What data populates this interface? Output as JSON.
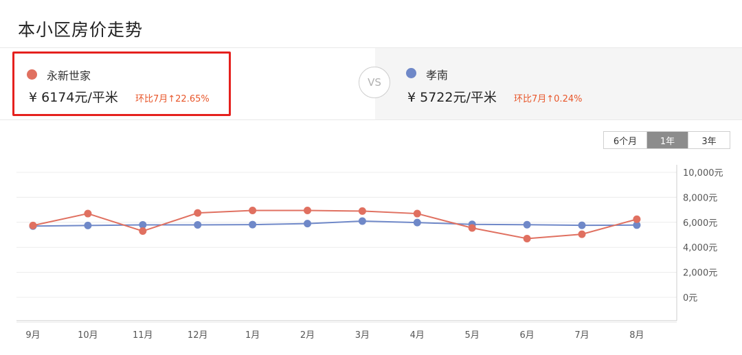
{
  "page": {
    "title": "本小区房价走势"
  },
  "compare": {
    "left": {
      "name": "永新世家",
      "price": "¥ 6174元/平米",
      "change": "环比7月↑22.65%",
      "color": "#e07060"
    },
    "vs": "VS",
    "right": {
      "name": "孝南",
      "price": "¥ 5722元/平米",
      "change": "环比7月↑0.24%",
      "color": "#6f88c8"
    }
  },
  "range_tabs": [
    {
      "label": "6个月",
      "active": false
    },
    {
      "label": "1年",
      "active": true
    },
    {
      "label": "3年",
      "active": false
    }
  ],
  "chart_data": {
    "type": "line",
    "categories": [
      "9月",
      "10月",
      "11月",
      "12月",
      "1月",
      "2月",
      "3月",
      "4月",
      "5月",
      "6月",
      "7月",
      "8月"
    ],
    "series": [
      {
        "name": "永新世家",
        "color": "#e07060",
        "values": [
          5750,
          6700,
          5300,
          6750,
          6950,
          6950,
          6900,
          6700,
          5550,
          4700,
          5050,
          6250
        ]
      },
      {
        "name": "孝南",
        "color": "#6f88c8",
        "values": [
          5700,
          5750,
          5800,
          5800,
          5820,
          5900,
          6100,
          5980,
          5840,
          5810,
          5760,
          5780
        ]
      }
    ],
    "y_ticks": [
      "10,000元",
      "8,000元",
      "6,000元",
      "4,000元",
      "2,000元",
      "0元"
    ],
    "ylim": [
      0,
      10000
    ],
    "grid": true
  }
}
